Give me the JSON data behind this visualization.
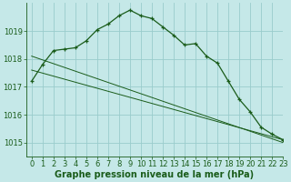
{
  "bg_color": "#c5e8e8",
  "grid_color": "#99cccc",
  "line_color": "#1a5c1a",
  "marker_color": "#1a5c1a",
  "xlabel": "Graphe pression niveau de la mer (hPa)",
  "xlim": [
    -0.5,
    23
  ],
  "ylim": [
    1014.5,
    1020.0
  ],
  "yticks": [
    1015,
    1016,
    1017,
    1018,
    1019
  ],
  "xticks": [
    0,
    1,
    2,
    3,
    4,
    5,
    6,
    7,
    8,
    9,
    10,
    11,
    12,
    13,
    14,
    15,
    16,
    17,
    18,
    19,
    20,
    21,
    22,
    23
  ],
  "line_straight1": [
    [
      0,
      1017.6
    ],
    [
      23,
      1015.1
    ]
  ],
  "line_straight2": [
    [
      0,
      1018.1
    ],
    [
      23,
      1015.0
    ]
  ],
  "curve_x": [
    0,
    1,
    2,
    3,
    4,
    5,
    6,
    7,
    8,
    9,
    10,
    11,
    12,
    13,
    14,
    15,
    16,
    17,
    18,
    19,
    20,
    21,
    22,
    23
  ],
  "curve_y": [
    1017.2,
    1017.8,
    1018.3,
    1018.35,
    1018.4,
    1018.65,
    1019.05,
    1019.25,
    1019.55,
    1019.75,
    1019.55,
    1019.45,
    1019.15,
    1018.85,
    1018.5,
    1018.55,
    1018.1,
    1017.85,
    1017.2,
    1016.55,
    1016.1,
    1015.55,
    1015.3,
    1015.1
  ],
  "xlabel_fontsize": 7,
  "tick_fontsize": 6,
  "ylabel_fontsize": 6
}
